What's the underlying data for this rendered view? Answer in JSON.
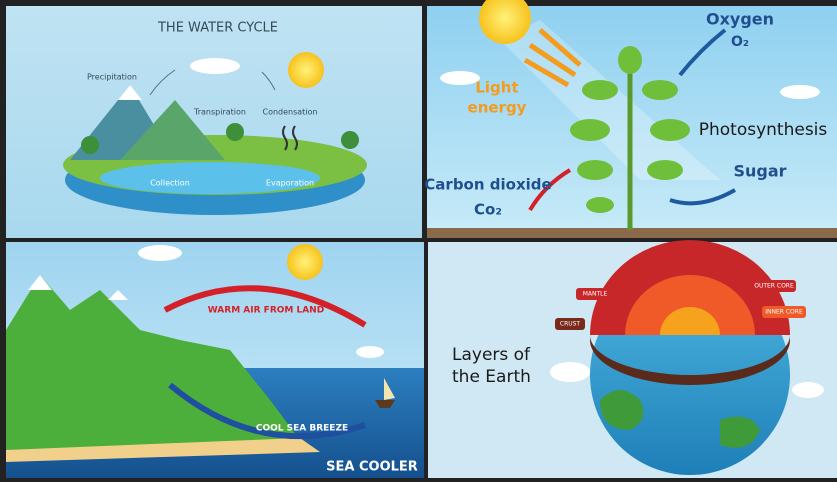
{
  "water_cycle": {
    "title": "THE WATER CYCLE",
    "labels": {
      "precipitation": "Precipitation",
      "transpiration": "Transpiration",
      "condensation": "Condensation",
      "collection": "Collection",
      "evaporation": "Evaporation"
    }
  },
  "photosynthesis": {
    "title": "Photosynthesis",
    "light_energy": [
      "Light",
      "energy"
    ],
    "oxygen": "Oxygen",
    "oxygen_formula": "O₂",
    "carbon_dioxide": "Carbon dioxide",
    "carbon_dioxide_formula": "Co₂",
    "sugar": "Sugar"
  },
  "sea_breeze": {
    "warm_air": "WARM AIR FROM LAND",
    "cool_breeze": "COOL SEA BREEZE",
    "sea_cooler": "SEA COOLER"
  },
  "earth_layers": {
    "title": [
      "Layers of",
      "the Earth"
    ],
    "labels": {
      "mantle": "MANTLE",
      "outer_core": "OUTER CORE",
      "inner_core": "INNER CORE",
      "crust": "CRUST"
    }
  }
}
